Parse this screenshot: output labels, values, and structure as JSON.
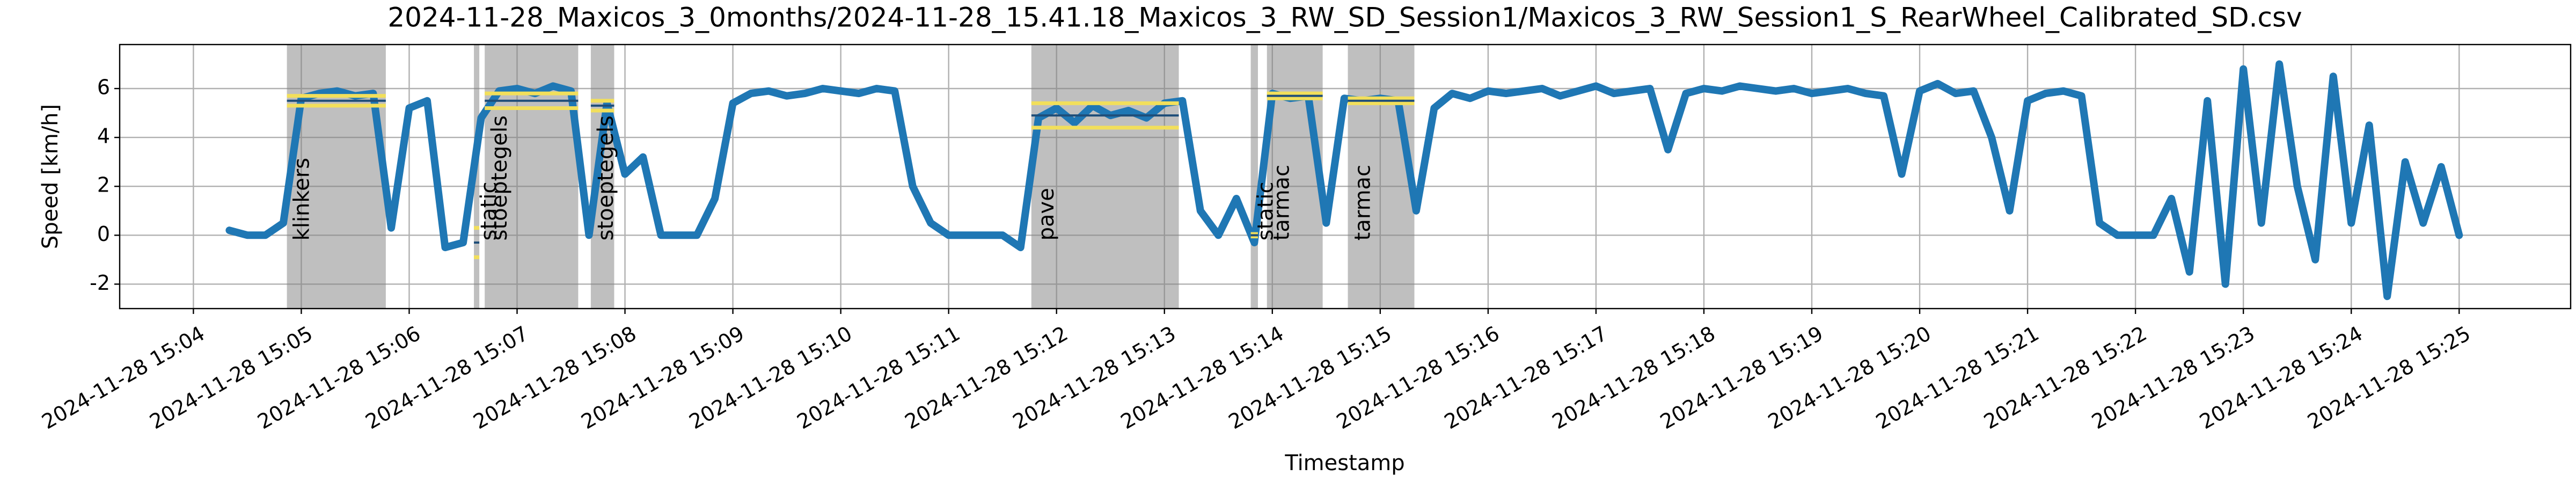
{
  "chart_data": {
    "type": "line",
    "title": "2024-11-28_Maxicos_3_0months/2024-11-28_15.41.18_Maxicos_3_RW_SD_Session1/Maxicos_3_RW_Session1_S_RearWheel_Calibrated_SD.csv",
    "x_label": "Timestamp",
    "y_label": "Speed [km/h]",
    "color": "#1f77b4",
    "grid": true,
    "xlim": [
      "2024-11-28 15:03:19",
      "2024-11-28 15:26:02"
    ],
    "xticks": [
      "2024-11-28 15:04",
      "2024-11-28 15:05",
      "2024-11-28 15:06",
      "2024-11-28 15:07",
      "2024-11-28 15:08",
      "2024-11-28 15:09",
      "2024-11-28 15:10",
      "2024-11-28 15:11",
      "2024-11-28 15:12",
      "2024-11-28 15:13",
      "2024-11-28 15:14",
      "2024-11-28 15:15",
      "2024-11-28 15:16",
      "2024-11-28 15:17",
      "2024-11-28 15:18",
      "2024-11-28 15:19",
      "2024-11-28 15:20",
      "2024-11-28 15:21",
      "2024-11-28 15:22",
      "2024-11-28 15:23",
      "2024-11-28 15:24",
      "2024-11-28 15:25"
    ],
    "ylim": [
      -3.0,
      7.8
    ],
    "yticks": [
      -2,
      0,
      2,
      4,
      6
    ],
    "x": [
      "2024-11-28 15:04:20",
      "2024-11-28 15:04:30",
      "2024-11-28 15:04:40",
      "2024-11-28 15:04:50",
      "2024-11-28 15:05:00",
      "2024-11-28 15:05:10",
      "2024-11-28 15:05:20",
      "2024-11-28 15:05:30",
      "2024-11-28 15:05:40",
      "2024-11-28 15:05:50",
      "2024-11-28 15:06:00",
      "2024-11-28 15:06:10",
      "2024-11-28 15:06:20",
      "2024-11-28 15:06:30",
      "2024-11-28 15:06:40",
      "2024-11-28 15:06:50",
      "2024-11-28 15:07:00",
      "2024-11-28 15:07:10",
      "2024-11-28 15:07:20",
      "2024-11-28 15:07:30",
      "2024-11-28 15:07:40",
      "2024-11-28 15:07:50",
      "2024-11-28 15:08:00",
      "2024-11-28 15:08:10",
      "2024-11-28 15:08:20",
      "2024-11-28 15:08:30",
      "2024-11-28 15:08:40",
      "2024-11-28 15:08:50",
      "2024-11-28 15:09:00",
      "2024-11-28 15:09:10",
      "2024-11-28 15:09:20",
      "2024-11-28 15:09:30",
      "2024-11-28 15:09:40",
      "2024-11-28 15:09:50",
      "2024-11-28 15:10:00",
      "2024-11-28 15:10:10",
      "2024-11-28 15:10:20",
      "2024-11-28 15:10:30",
      "2024-11-28 15:10:40",
      "2024-11-28 15:10:50",
      "2024-11-28 15:11:00",
      "2024-11-28 15:11:10",
      "2024-11-28 15:11:20",
      "2024-11-28 15:11:30",
      "2024-11-28 15:11:40",
      "2024-11-28 15:11:50",
      "2024-11-28 15:12:00",
      "2024-11-28 15:12:10",
      "2024-11-28 15:12:20",
      "2024-11-28 15:12:30",
      "2024-11-28 15:12:40",
      "2024-11-28 15:12:50",
      "2024-11-28 15:13:00",
      "2024-11-28 15:13:10",
      "2024-11-28 15:13:20",
      "2024-11-28 15:13:30",
      "2024-11-28 15:13:40",
      "2024-11-28 15:13:50",
      "2024-11-28 15:14:00",
      "2024-11-28 15:14:10",
      "2024-11-28 15:14:20",
      "2024-11-28 15:14:30",
      "2024-11-28 15:14:40",
      "2024-11-28 15:14:50",
      "2024-11-28 15:15:00",
      "2024-11-28 15:15:10",
      "2024-11-28 15:15:20",
      "2024-11-28 15:15:30",
      "2024-11-28 15:15:40",
      "2024-11-28 15:15:50",
      "2024-11-28 15:16:00",
      "2024-11-28 15:16:10",
      "2024-11-28 15:16:20",
      "2024-11-28 15:16:30",
      "2024-11-28 15:16:40",
      "2024-11-28 15:16:50",
      "2024-11-28 15:17:00",
      "2024-11-28 15:17:10",
      "2024-11-28 15:17:20",
      "2024-11-28 15:17:30",
      "2024-11-28 15:17:40",
      "2024-11-28 15:17:50",
      "2024-11-28 15:18:00",
      "2024-11-28 15:18:10",
      "2024-11-28 15:18:20",
      "2024-11-28 15:18:30",
      "2024-11-28 15:18:40",
      "2024-11-28 15:18:50",
      "2024-11-28 15:19:00",
      "2024-11-28 15:19:10",
      "2024-11-28 15:19:20",
      "2024-11-28 15:19:30",
      "2024-11-28 15:19:40",
      "2024-11-28 15:19:50",
      "2024-11-28 15:20:00",
      "2024-11-28 15:20:10",
      "2024-11-28 15:20:20",
      "2024-11-28 15:20:30",
      "2024-11-28 15:20:40",
      "2024-11-28 15:20:50",
      "2024-11-28 15:21:00",
      "2024-11-28 15:21:10",
      "2024-11-28 15:21:20",
      "2024-11-28 15:21:30",
      "2024-11-28 15:21:40",
      "2024-11-28 15:21:50",
      "2024-11-28 15:22:00",
      "2024-11-28 15:22:10",
      "2024-11-28 15:22:20",
      "2024-11-28 15:22:30",
      "2024-11-28 15:22:40",
      "2024-11-28 15:22:50",
      "2024-11-28 15:23:00",
      "2024-11-28 15:23:10",
      "2024-11-28 15:23:20",
      "2024-11-28 15:23:30",
      "2024-11-28 15:23:40",
      "2024-11-28 15:23:50",
      "2024-11-28 15:24:00",
      "2024-11-28 15:24:10",
      "2024-11-28 15:24:20",
      "2024-11-28 15:24:30",
      "2024-11-28 15:24:40",
      "2024-11-28 15:24:50",
      "2024-11-28 15:25:00"
    ],
    "values": [
      0.2,
      0,
      0,
      0.5,
      5.6,
      5.8,
      5.9,
      5.7,
      5.8,
      0.3,
      5.2,
      5.5,
      -0.5,
      -0.3,
      4.8,
      5.9,
      6.0,
      5.8,
      6.1,
      5.9,
      0,
      5.4,
      2.5,
      3.2,
      0,
      0,
      0,
      1.5,
      5.4,
      5.8,
      5.9,
      5.7,
      5.8,
      6.0,
      5.9,
      5.8,
      6.0,
      5.9,
      2.0,
      0.5,
      0,
      0,
      0,
      0,
      -0.5,
      4.8,
      5.2,
      4.6,
      5.3,
      4.9,
      5.1,
      4.8,
      5.4,
      5.5,
      1.0,
      0,
      1.5,
      -0.3,
      5.8,
      5.6,
      5.7,
      0.5,
      5.6,
      5.5,
      5.6,
      5.5,
      1.0,
      5.2,
      5.8,
      5.6,
      5.9,
      5.8,
      5.9,
      6.0,
      5.7,
      5.9,
      6.1,
      5.8,
      5.9,
      6.0,
      3.5,
      5.8,
      6.0,
      5.9,
      6.1,
      6.0,
      5.9,
      6.0,
      5.8,
      5.9,
      6.0,
      5.8,
      5.7,
      2.5,
      5.9,
      6.2,
      5.8,
      5.9,
      4.0,
      1.0,
      5.5,
      5.8,
      5.9,
      5.7,
      0.5,
      0,
      0,
      0,
      1.5,
      -1.5,
      5.5,
      -2.0,
      6.8,
      0.5,
      7.0,
      2.0,
      -1.0,
      6.5,
      0.5,
      4.5,
      -2.5,
      3.0,
      0.5,
      2.8,
      0
    ],
    "regions": [
      {
        "label": "klinkers",
        "start": "2024-11-28 15:04:52",
        "end": "2024-11-28 15:05:47",
        "mean": 5.5,
        "std": 0.2
      },
      {
        "label": "static",
        "start": "2024-11-28 15:06:36",
        "end": "2024-11-28 15:06:39",
        "mean": -0.3,
        "std": 0.6
      },
      {
        "label": "stoeptegels",
        "start": "2024-11-28 15:06:42",
        "end": "2024-11-28 15:07:34",
        "mean": 5.5,
        "std": 0.3
      },
      {
        "label": "stoeptegels",
        "start": "2024-11-28 15:07:41",
        "end": "2024-11-28 15:07:54",
        "mean": 5.3,
        "std": 0.2
      },
      {
        "label": "pave",
        "start": "2024-11-28 15:11:46",
        "end": "2024-11-28 15:13:08",
        "mean": 4.9,
        "std": 0.5
      },
      {
        "label": "static",
        "start": "2024-11-28 15:13:48",
        "end": "2024-11-28 15:13:52",
        "mean": 0,
        "std": 0.05
      },
      {
        "label": "tarmac",
        "start": "2024-11-28 15:13:57",
        "end": "2024-11-28 15:14:28",
        "mean": 5.7,
        "std": 0.1
      },
      {
        "label": "tarmac",
        "start": "2024-11-28 15:14:42",
        "end": "2024-11-28 15:15:19",
        "mean": 5.5,
        "std": 0.1
      }
    ]
  }
}
